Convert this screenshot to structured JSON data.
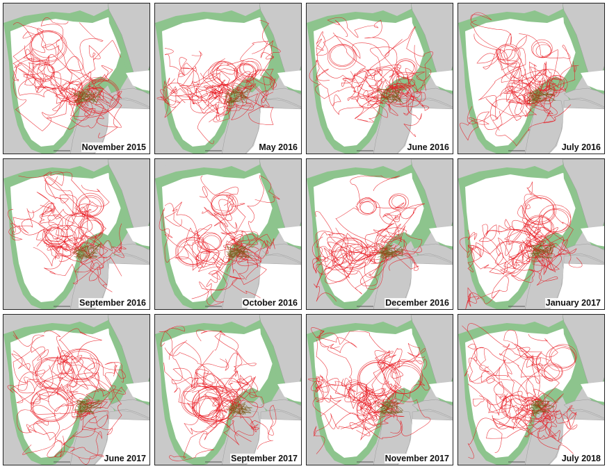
{
  "colors": {
    "land": "#c9c9c9",
    "land_edge": "#9a9a9a",
    "shelf": "#8dc48d",
    "water": "#ffffff",
    "track": "#e8141c",
    "track_shelf": "#7a5a1a",
    "frame": "#222222"
  },
  "panels": [
    {
      "label": "November 2015"
    },
    {
      "label": "May 2016"
    },
    {
      "label": "June 2016"
    },
    {
      "label": "July 2016"
    },
    {
      "label": "September 2016"
    },
    {
      "label": "October 2016"
    },
    {
      "label": "December 2016"
    },
    {
      "label": "January 2017"
    },
    {
      "label": "June 2017"
    },
    {
      "label": "September 2017"
    },
    {
      "label": "November 2017"
    },
    {
      "label": "July 2018"
    }
  ]
}
